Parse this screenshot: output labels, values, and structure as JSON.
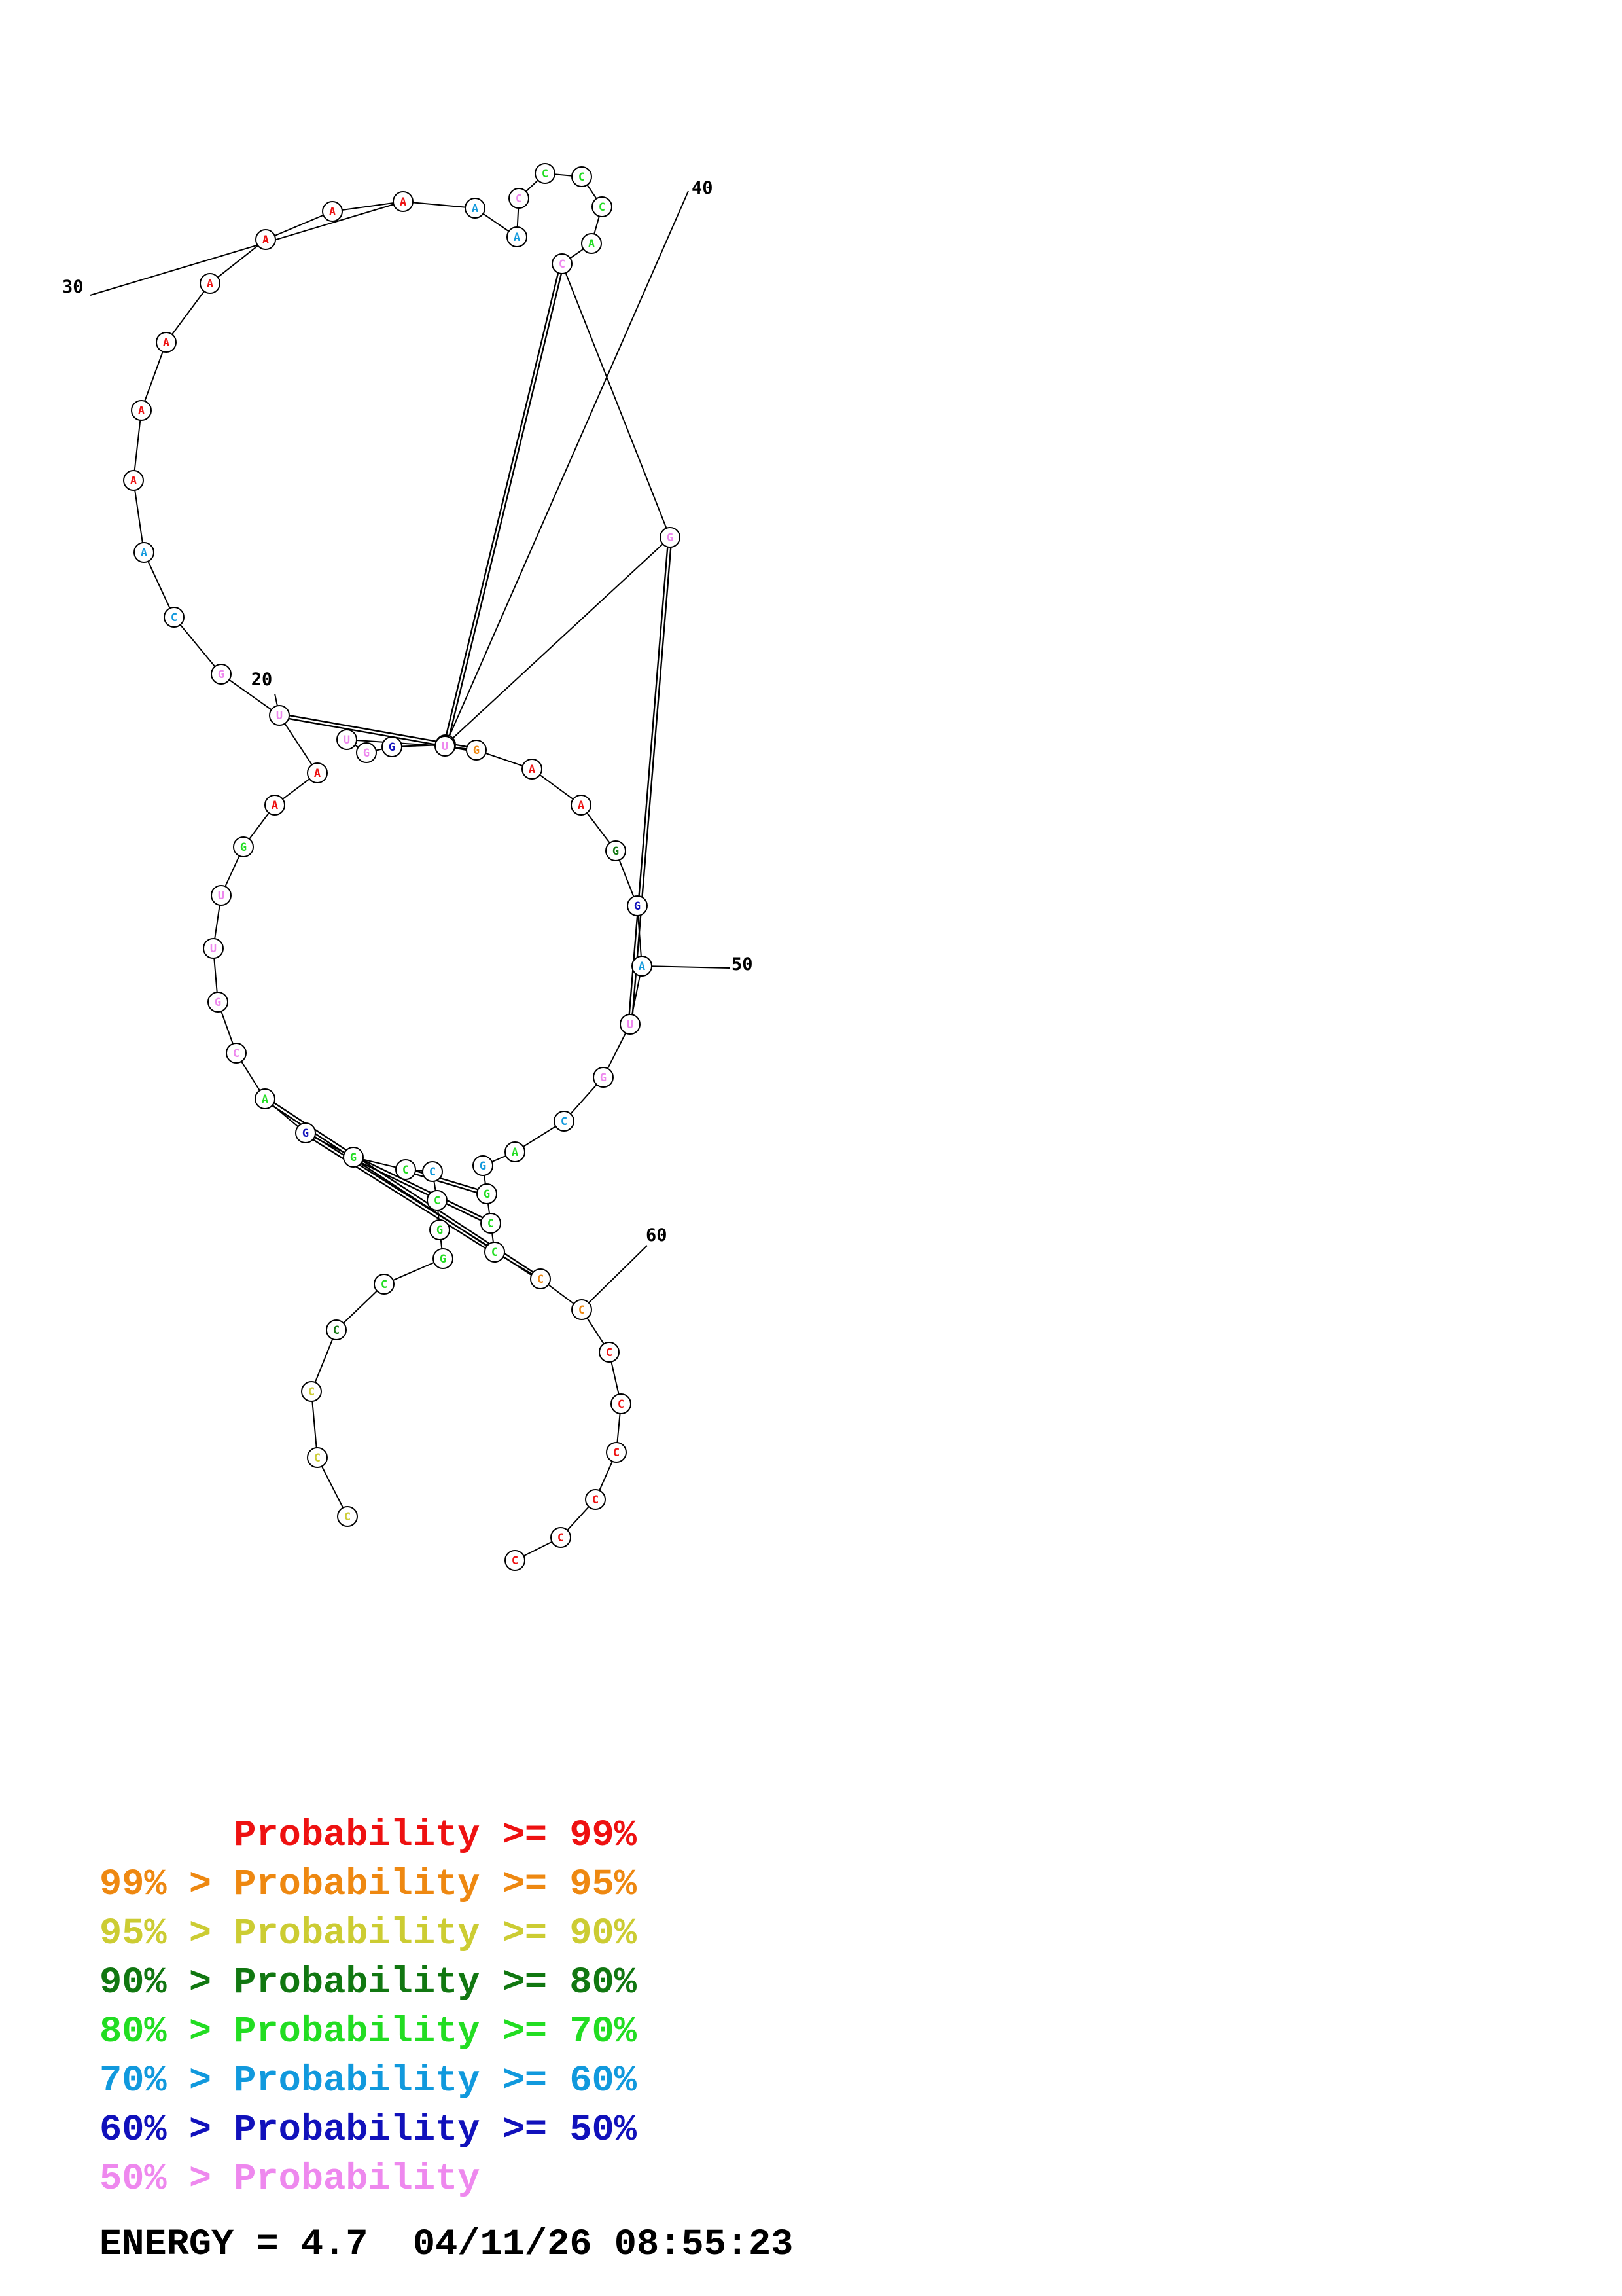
{
  "colors": {
    "red": "#ee1111",
    "orange": "#ee8811",
    "yellow": "#cccc33",
    "dark_green": "#117711",
    "green": "#22dd22",
    "cyan": "#1199dd",
    "blue": "#1111bb",
    "pink": "#ee88ee"
  },
  "structure": {
    "nucleotides": [
      {
        "base": "C",
        "color": "yellow"
      },
      {
        "base": "C",
        "color": "yellow"
      },
      {
        "base": "C",
        "color": "yellow"
      },
      {
        "base": "C",
        "color": "dark_green"
      },
      {
        "base": "C",
        "color": "green"
      },
      {
        "base": "G",
        "color": "green"
      },
      {
        "base": "G",
        "color": "green"
      },
      {
        "base": "C",
        "color": "green"
      },
      {
        "base": "C",
        "color": "cyan"
      },
      {
        "base": "C",
        "color": "green"
      },
      {
        "base": "G",
        "color": "green"
      },
      {
        "base": "G",
        "color": "blue"
      },
      {
        "base": "A",
        "color": "green"
      },
      {
        "base": "C",
        "color": "pink"
      },
      {
        "base": "G",
        "color": "pink"
      },
      {
        "base": "U",
        "color": "pink"
      },
      {
        "base": "U",
        "color": "pink"
      },
      {
        "base": "G",
        "color": "green"
      },
      {
        "base": "A",
        "color": "red"
      },
      {
        "base": "A",
        "color": "red"
      },
      {
        "base": "U",
        "color": "pink"
      },
      {
        "base": "G",
        "color": "pink"
      },
      {
        "base": "C",
        "color": "cyan"
      },
      {
        "base": "A",
        "color": "cyan"
      },
      {
        "base": "A",
        "color": "red"
      },
      {
        "base": "A",
        "color": "red"
      },
      {
        "base": "A",
        "color": "red"
      },
      {
        "base": "A",
        "color": "red"
      },
      {
        "base": "A",
        "color": "red"
      },
      {
        "base": "A",
        "color": "red"
      },
      {
        "base": "A",
        "color": "red"
      },
      {
        "base": "A",
        "color": "cyan"
      },
      {
        "base": "A",
        "color": "cyan"
      },
      {
        "base": "C",
        "color": "pink"
      },
      {
        "base": "C",
        "color": "green"
      },
      {
        "base": "C",
        "color": "green"
      },
      {
        "base": "C",
        "color": "green"
      },
      {
        "base": "A",
        "color": "green"
      },
      {
        "base": "C",
        "color": "pink"
      },
      {
        "base": "G",
        "color": "pink"
      },
      {
        "base": "A",
        "color": "cyan"
      },
      {
        "base": "G",
        "color": "blue"
      },
      {
        "base": "G",
        "color": "pink"
      },
      {
        "base": "U",
        "color": "pink"
      },
      {
        "base": "U",
        "color": "pink"
      },
      {
        "base": "G",
        "color": "orange"
      },
      {
        "base": "A",
        "color": "red"
      },
      {
        "base": "A",
        "color": "red"
      },
      {
        "base": "G",
        "color": "dark_green"
      },
      {
        "base": "G",
        "color": "blue"
      },
      {
        "base": "A",
        "color": "cyan"
      },
      {
        "base": "U",
        "color": "pink"
      },
      {
        "base": "G",
        "color": "pink"
      },
      {
        "base": "C",
        "color": "cyan"
      },
      {
        "base": "A",
        "color": "green"
      },
      {
        "base": "G",
        "color": "cyan"
      },
      {
        "base": "G",
        "color": "green"
      },
      {
        "base": "C",
        "color": "green"
      },
      {
        "base": "C",
        "color": "green"
      },
      {
        "base": "C",
        "color": "orange"
      },
      {
        "base": "C",
        "color": "orange"
      },
      {
        "base": "C",
        "color": "red"
      },
      {
        "base": "C",
        "color": "red"
      },
      {
        "base": "C",
        "color": "red"
      },
      {
        "base": "C",
        "color": "red"
      },
      {
        "base": "C",
        "color": "red"
      },
      {
        "base": "C",
        "color": "red"
      }
    ],
    "pairs": [
      [
        9,
        56
      ],
      [
        10,
        57
      ],
      [
        11,
        58
      ],
      [
        12,
        59
      ],
      [
        20,
        45
      ],
      [
        38,
        40
      ],
      [
        39,
        51
      ]
    ],
    "tick_labels": [
      {
        "index": 20,
        "text": "20"
      },
      {
        "index": 30,
        "text": "30"
      },
      {
        "index": 40,
        "text": "40"
      },
      {
        "index": 50,
        "text": "50"
      },
      {
        "index": 60,
        "text": "60"
      }
    ]
  },
  "legend": [
    {
      "prefix": "",
      "label": "Probability",
      "suffix": ">= 99%",
      "color": "red"
    },
    {
      "prefix": "99% >",
      "label": "Probability",
      "suffix": ">= 95%",
      "color": "orange"
    },
    {
      "prefix": "95% >",
      "label": "Probability",
      "suffix": ">= 90%",
      "color": "yellow"
    },
    {
      "prefix": "90% >",
      "label": "Probability",
      "suffix": ">= 80%",
      "color": "dark_green"
    },
    {
      "prefix": "80% >",
      "label": "Probability",
      "suffix": ">= 70%",
      "color": "green"
    },
    {
      "prefix": "70% >",
      "label": "Probability",
      "suffix": ">= 60%",
      "color": "cyan"
    },
    {
      "prefix": "60% >",
      "label": "Probability",
      "suffix": ">= 50%",
      "color": "blue"
    },
    {
      "prefix": "50% >",
      "label": "Probability",
      "suffix": "",
      "color": "pink"
    }
  ],
  "energy": {
    "label": "ENERGY = 4.7",
    "timestamp": "04/11/26 08:55:23"
  }
}
